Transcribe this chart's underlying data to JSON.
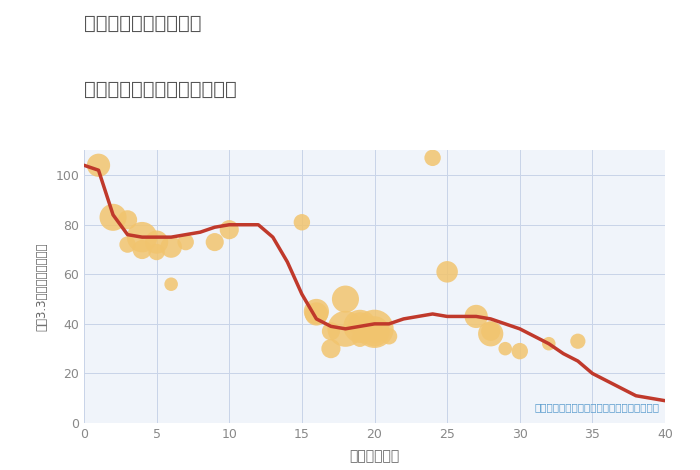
{
  "title_line1": "埼玉県東松山市白山台",
  "title_line2": "築年数別中古マンション価格",
  "xlabel": "築年数（年）",
  "ylabel": "坪（3.3㎡）単価（万円）",
  "annotation": "円の大きさは、取引のあった物件面積を示す",
  "bg_color": "#ffffff",
  "plot_bg_color": "#f0f4fa",
  "xlim": [
    0,
    40
  ],
  "ylim": [
    0,
    110
  ],
  "xticks": [
    0,
    5,
    10,
    15,
    20,
    25,
    30,
    35,
    40
  ],
  "yticks": [
    0,
    20,
    40,
    60,
    80,
    100
  ],
  "scatter_x": [
    1,
    2,
    3,
    3,
    4,
    4,
    5,
    5,
    6,
    6,
    7,
    9,
    10,
    15,
    16,
    16,
    17,
    17,
    18,
    18,
    19,
    19,
    19,
    20,
    20,
    20,
    21,
    24,
    25,
    27,
    28,
    28,
    29,
    30,
    32,
    34
  ],
  "scatter_y": [
    104,
    83,
    82,
    72,
    75,
    70,
    69,
    73,
    56,
    71,
    73,
    73,
    78,
    81,
    45,
    44,
    30,
    37,
    38,
    50,
    39,
    40,
    34,
    38,
    37,
    36,
    35,
    107,
    61,
    43,
    36,
    37,
    30,
    29,
    32,
    33
  ],
  "scatter_size": [
    280,
    380,
    190,
    140,
    480,
    190,
    140,
    280,
    95,
    240,
    140,
    170,
    190,
    140,
    330,
    280,
    190,
    170,
    670,
    380,
    570,
    280,
    140,
    760,
    470,
    190,
    140,
    140,
    240,
    280,
    330,
    190,
    95,
    140,
    95,
    120
  ],
  "scatter_color": "#f2c46e",
  "scatter_alpha": 0.85,
  "line_x": [
    0,
    1,
    2,
    3,
    4,
    5,
    6,
    7,
    8,
    9,
    10,
    11,
    12,
    13,
    14,
    15,
    16,
    17,
    18,
    19,
    20,
    21,
    22,
    23,
    24,
    25,
    26,
    27,
    28,
    29,
    30,
    31,
    32,
    33,
    34,
    35,
    36,
    37,
    38,
    39,
    40
  ],
  "line_y": [
    104,
    102,
    84,
    76,
    75,
    75,
    75,
    76,
    77,
    79,
    80,
    80,
    80,
    75,
    65,
    52,
    42,
    39,
    38,
    39,
    40,
    40,
    42,
    43,
    44,
    43,
    43,
    43,
    42,
    40,
    38,
    35,
    32,
    28,
    25,
    20,
    17,
    14,
    11,
    10,
    9
  ],
  "line_color": "#c0392b",
  "line_width": 2.5,
  "title_color": "#555555",
  "axis_label_color": "#666666",
  "tick_color": "#888888",
  "grid_color": "#c8d4e8",
  "annotation_color": "#5599cc"
}
